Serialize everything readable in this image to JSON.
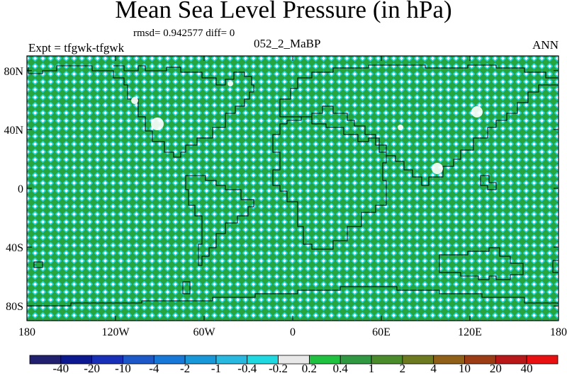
{
  "header": {
    "title": "Mean Sea Level Pressure (in hPa)",
    "stats": "rmsd= 0.942577 diff= 0",
    "experiment": "Expt = tfgwk-tfgwk",
    "case_name": "052_2_MaBP",
    "season": "ANN"
  },
  "chart_data": {
    "type": "heatmap",
    "title": "Mean Sea Level Pressure (in hPa)",
    "variable": "Mean Sea Level Pressure",
    "units": "hPa",
    "projection": "cylindrical equidistant",
    "x_ticks": [
      "180",
      "120W",
      "60W",
      "0",
      "60E",
      "120E",
      "180"
    ],
    "x_tick_values": [
      -180,
      -120,
      -60,
      0,
      60,
      120,
      180
    ],
    "y_ticks": [
      "80N",
      "40N",
      "0",
      "40S",
      "80S"
    ],
    "y_tick_values": [
      80,
      40,
      0,
      -40,
      -80
    ],
    "xlim": [
      -180,
      180
    ],
    "ylim": [
      -90,
      90
    ],
    "field_summary": "difference field is essentially zero everywhere (diff = 0); stippled pattern of near-zero values alternating between the -0.2 to 0.2 and 0.2 to 0.4 bins",
    "colorbar": {
      "labels": [
        "-40",
        "-20",
        "-10",
        "-4",
        "-2",
        "-1",
        "-0.4",
        "-0.2",
        "0.2",
        "0.4",
        "1",
        "2",
        "4",
        "10",
        "20",
        "40"
      ],
      "colors": [
        "#20206e",
        "#0c1890",
        "#1830b8",
        "#1c58c8",
        "#1878d8",
        "#1898d8",
        "#28b8e0",
        "#20d8e0",
        "#e8e8e8",
        "#20c040",
        "#309840",
        "#4a8c2c",
        "#6e7a20",
        "#906018",
        "#9c3c14",
        "#b81818",
        "#e81010"
      ]
    }
  },
  "colors": {
    "field_base": "#26a43e",
    "field_pattern_light": "#20d4dc",
    "field_pattern_white": "#ffffff",
    "coastline": "#000000"
  }
}
